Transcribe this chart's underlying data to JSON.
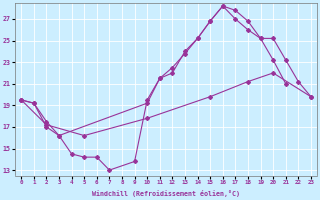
{
  "xlabel": "Windchill (Refroidissement éolien,°C)",
  "bg_color": "#cceeff",
  "line_color": "#993399",
  "grid_color": "#ffffff",
  "xlim": [
    -0.5,
    23.5
  ],
  "ylim": [
    12.5,
    28.5
  ],
  "yticks": [
    13,
    15,
    17,
    19,
    21,
    23,
    25,
    27
  ],
  "xticks": [
    0,
    1,
    2,
    3,
    4,
    5,
    6,
    7,
    8,
    9,
    10,
    11,
    12,
    13,
    14,
    15,
    16,
    17,
    18,
    19,
    20,
    21,
    22,
    23
  ],
  "line1_x": [
    0,
    1,
    2,
    3,
    4,
    5,
    6,
    7,
    9,
    10,
    11,
    12,
    13,
    14,
    15,
    16,
    17,
    18,
    19,
    20,
    21
  ],
  "line1_y": [
    19.5,
    19.2,
    17.0,
    16.2,
    14.5,
    14.2,
    14.2,
    13.0,
    13.8,
    19.5,
    21.5,
    22.0,
    24.0,
    25.2,
    26.8,
    28.2,
    27.8,
    26.8,
    25.2,
    23.2,
    21.0
  ],
  "line2_x": [
    0,
    2,
    5,
    10,
    15,
    18,
    20,
    23
  ],
  "line2_y": [
    19.5,
    17.2,
    16.2,
    17.8,
    19.8,
    21.2,
    22.0,
    19.8
  ],
  "line3_x": [
    0,
    1,
    2,
    3,
    10,
    11,
    12,
    13,
    14,
    15,
    16,
    17,
    18,
    19,
    20,
    21,
    22,
    23
  ],
  "line3_y": [
    19.5,
    19.2,
    17.5,
    16.2,
    19.2,
    21.5,
    22.5,
    23.8,
    25.2,
    26.8,
    28.2,
    27.0,
    26.0,
    25.2,
    25.2,
    23.2,
    21.2,
    19.8
  ]
}
